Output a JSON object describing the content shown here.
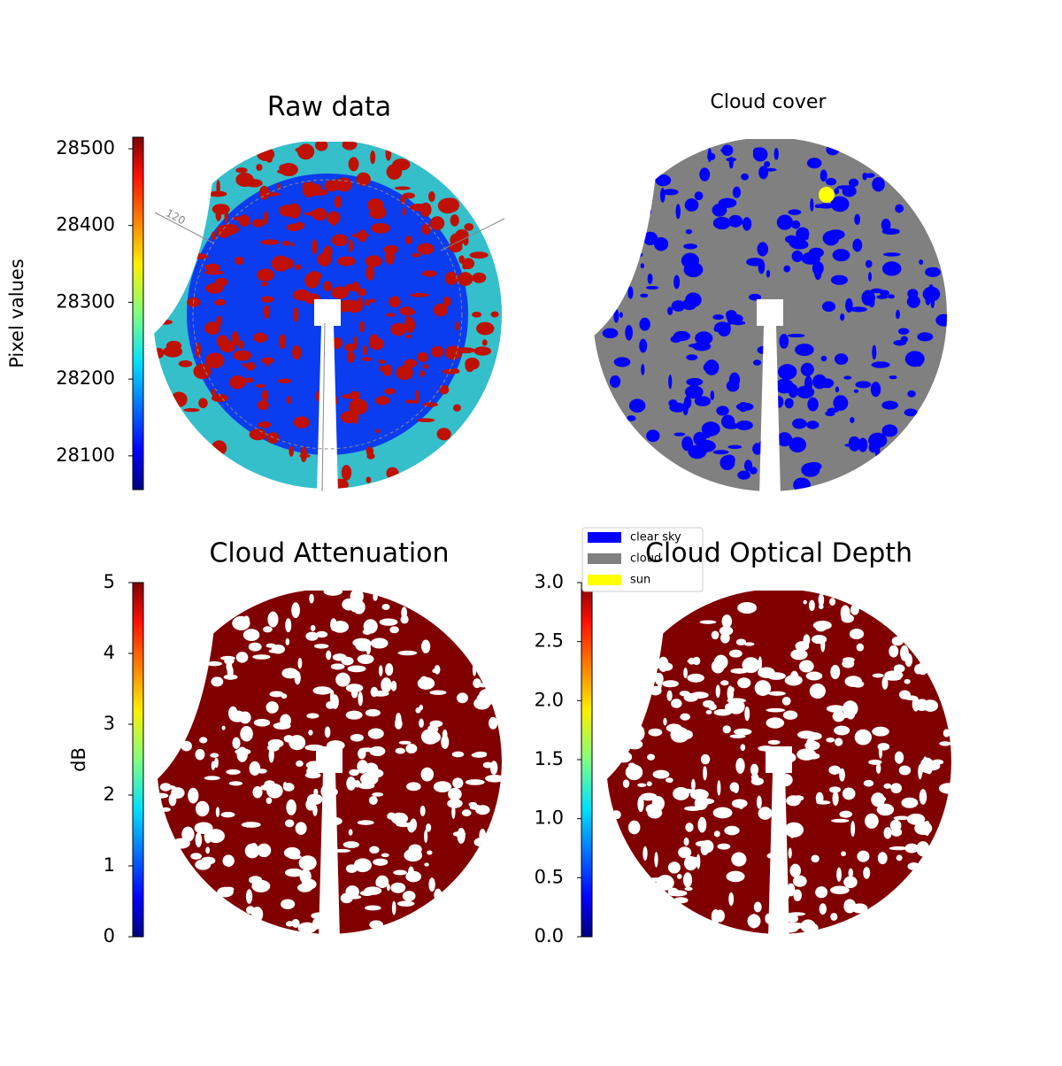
{
  "chart_data": [
    {
      "type": "image",
      "title": "Raw data",
      "annotation": "120",
      "cmap": "jet",
      "colorbar_label": "Pixel values",
      "ylim": [
        28056,
        28515
      ],
      "yticks": [
        28100,
        28200,
        28300,
        28400,
        28500
      ]
    },
    {
      "type": "image",
      "title": "Cloud cover",
      "legend": [
        {
          "name": "clear sky",
          "color": "#0000ff"
        },
        {
          "name": "cloud",
          "color": "#808080"
        },
        {
          "name": "sun",
          "color": "#ffff00"
        }
      ]
    },
    {
      "type": "image",
      "title": "Cloud Attenuation",
      "cmap": "jet",
      "colorbar_label": "dB",
      "ylim": [
        0,
        5
      ],
      "yticks": [
        0,
        1,
        2,
        3,
        4,
        5
      ]
    },
    {
      "type": "image",
      "title": "Cloud Optical Depth",
      "cmap": "jet",
      "ylim": [
        0,
        3
      ],
      "yticks": [
        {
          "value": 0,
          "label": "0.0"
        },
        0.5,
        {
          "value": 1,
          "label": "1.0"
        },
        1.5,
        {
          "value": 2,
          "label": "2.0"
        },
        2.5,
        {
          "value": 3,
          "label": "3.0"
        }
      ]
    }
  ]
}
